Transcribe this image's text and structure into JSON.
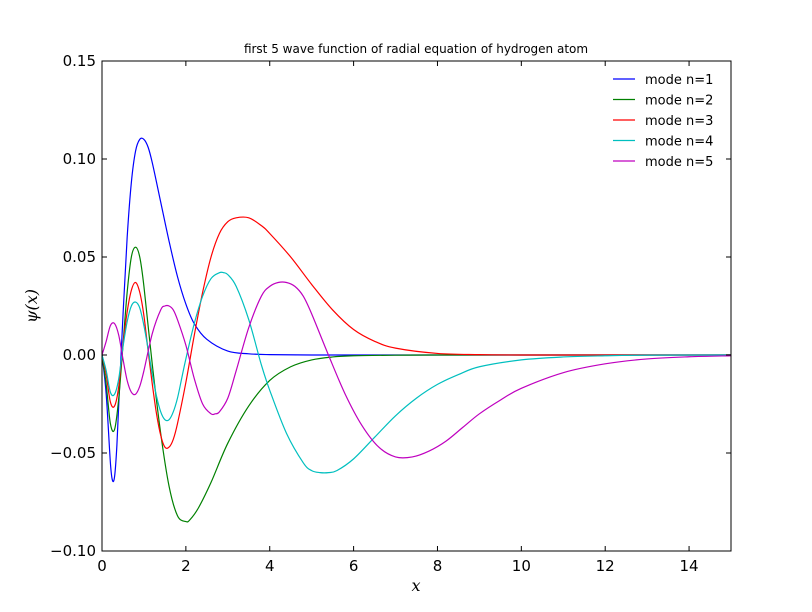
{
  "chart_data": {
    "type": "line",
    "title": "first 5 wave function of radial equation of hydrogen atom",
    "xlabel": "x",
    "ylabel": "ψ(x)",
    "xlim": [
      0,
      15
    ],
    "ylim": [
      -0.1,
      0.15
    ],
    "xticks": [
      0,
      2,
      4,
      6,
      8,
      10,
      12,
      14
    ],
    "xtick_labels": [
      "0",
      "2",
      "4",
      "6",
      "8",
      "10",
      "12",
      "14"
    ],
    "yticks": [
      -0.1,
      -0.05,
      0.0,
      0.05,
      0.1,
      0.15
    ],
    "ytick_labels": [
      "−0.10",
      "−0.05",
      "0.00",
      "0.05",
      "0.10",
      "0.15"
    ],
    "legend_position": "top-right",
    "grid": false,
    "series": [
      {
        "name": "mode n=1",
        "color": "#0000ff",
        "x": [
          0,
          0.1,
          0.2,
          0.25,
          0.3,
          0.35,
          0.4,
          0.5,
          0.6,
          0.7,
          0.8,
          0.9,
          1.0,
          1.1,
          1.2,
          1.4,
          1.6,
          1.8,
          2.0,
          2.2,
          2.5,
          3.0,
          3.5,
          4.0,
          5.0,
          6.0,
          8.0,
          10.0,
          15.0
        ],
        "y": [
          0,
          -0.02,
          -0.055,
          -0.064,
          -0.062,
          -0.048,
          -0.025,
          0.02,
          0.06,
          0.088,
          0.104,
          0.11,
          0.11,
          0.106,
          0.098,
          0.078,
          0.058,
          0.04,
          0.026,
          0.016,
          0.008,
          0.002,
          0.0006,
          0.0002,
          0,
          0,
          0,
          0,
          0
        ]
      },
      {
        "name": "mode n=2",
        "color": "#008000",
        "x": [
          0,
          0.1,
          0.2,
          0.3,
          0.4,
          0.5,
          0.6,
          0.7,
          0.8,
          0.9,
          1.0,
          1.2,
          1.4,
          1.6,
          1.8,
          2.0,
          2.1,
          2.3,
          2.6,
          3.0,
          3.5,
          4.0,
          4.5,
          5.0,
          5.5,
          6.0,
          7.0,
          8.0,
          10.0,
          15.0
        ],
        "y": [
          0,
          -0.015,
          -0.035,
          -0.038,
          -0.022,
          0.005,
          0.032,
          0.05,
          0.055,
          0.05,
          0.035,
          -0.005,
          -0.04,
          -0.067,
          -0.082,
          -0.085,
          -0.084,
          -0.078,
          -0.065,
          -0.045,
          -0.026,
          -0.013,
          -0.006,
          -0.0025,
          -0.001,
          -0.0004,
          -0.0001,
          0,
          0,
          0
        ]
      },
      {
        "name": "mode n=3",
        "color": "#ff0000",
        "x": [
          0,
          0.1,
          0.2,
          0.3,
          0.4,
          0.5,
          0.6,
          0.7,
          0.8,
          0.9,
          1.0,
          1.1,
          1.2,
          1.3,
          1.4,
          1.5,
          1.6,
          1.7,
          1.8,
          2.0,
          2.2,
          2.4,
          2.6,
          2.8,
          3.0,
          3.2,
          3.5,
          3.8,
          4.0,
          4.5,
          5.0,
          5.5,
          6.0,
          6.5,
          7.0,
          8.0,
          9.0,
          10.0,
          12.0,
          15.0
        ],
        "y": [
          0,
          -0.01,
          -0.024,
          -0.026,
          -0.016,
          0.005,
          0.022,
          0.033,
          0.037,
          0.032,
          0.02,
          0.002,
          -0.015,
          -0.03,
          -0.041,
          -0.047,
          -0.047,
          -0.043,
          -0.035,
          -0.014,
          0.01,
          0.032,
          0.05,
          0.062,
          0.068,
          0.07,
          0.07,
          0.066,
          0.062,
          0.05,
          0.036,
          0.023,
          0.013,
          0.007,
          0.0035,
          0.0008,
          0.0002,
          0,
          0,
          0
        ]
      },
      {
        "name": "mode n=4",
        "color": "#00bfbf",
        "x": [
          0,
          0.1,
          0.2,
          0.3,
          0.4,
          0.5,
          0.6,
          0.7,
          0.8,
          0.9,
          1.0,
          1.1,
          1.2,
          1.3,
          1.4,
          1.5,
          1.6,
          1.7,
          1.8,
          1.9,
          2.0,
          2.2,
          2.4,
          2.6,
          2.8,
          2.9,
          3.0,
          3.2,
          3.5,
          3.8,
          4.0,
          4.4,
          4.8,
          5.0,
          5.2,
          5.4,
          5.6,
          6.0,
          6.5,
          7.0,
          7.5,
          8.0,
          8.5,
          9.0,
          10.0,
          11.0,
          12.0,
          13.0,
          15.0
        ],
        "y": [
          0,
          -0.008,
          -0.019,
          -0.02,
          -0.012,
          0.004,
          0.017,
          0.025,
          0.027,
          0.024,
          0.015,
          0.003,
          -0.01,
          -0.021,
          -0.029,
          -0.033,
          -0.033,
          -0.029,
          -0.022,
          -0.012,
          -0.002,
          0.016,
          0.03,
          0.039,
          0.042,
          0.042,
          0.041,
          0.035,
          0.018,
          -0.005,
          -0.018,
          -0.04,
          -0.055,
          -0.059,
          -0.06,
          -0.06,
          -0.059,
          -0.053,
          -0.042,
          -0.031,
          -0.022,
          -0.015,
          -0.01,
          -0.006,
          -0.0025,
          -0.001,
          -0.0004,
          -0.0001,
          0
        ]
      },
      {
        "name": "mode n=5",
        "color": "#bf00bf",
        "x": [
          0,
          0.1,
          0.2,
          0.3,
          0.4,
          0.5,
          0.6,
          0.7,
          0.8,
          0.9,
          1.0,
          1.2,
          1.4,
          1.5,
          1.6,
          1.7,
          1.8,
          2.0,
          2.2,
          2.4,
          2.6,
          2.7,
          2.8,
          3.0,
          3.2,
          3.5,
          3.8,
          4.0,
          4.2,
          4.4,
          4.6,
          4.8,
          5.0,
          5.4,
          5.8,
          6.2,
          6.6,
          7.0,
          7.4,
          7.8,
          8.2,
          8.6,
          9.0,
          9.5,
          10.0,
          11.0,
          12.0,
          13.0,
          14.0,
          15.0
        ],
        "y": [
          0,
          0.007,
          0.015,
          0.016,
          0.01,
          -0.002,
          -0.013,
          -0.019,
          -0.02,
          -0.016,
          -0.008,
          0.011,
          0.023,
          0.025,
          0.025,
          0.023,
          0.018,
          0.005,
          -0.012,
          -0.025,
          -0.03,
          -0.03,
          -0.029,
          -0.022,
          -0.008,
          0.014,
          0.03,
          0.035,
          0.037,
          0.037,
          0.035,
          0.03,
          0.021,
          0.0,
          -0.02,
          -0.036,
          -0.047,
          -0.052,
          -0.052,
          -0.049,
          -0.044,
          -0.037,
          -0.03,
          -0.023,
          -0.017,
          -0.009,
          -0.0045,
          -0.002,
          -0.0009,
          -0.0004
        ]
      }
    ]
  }
}
